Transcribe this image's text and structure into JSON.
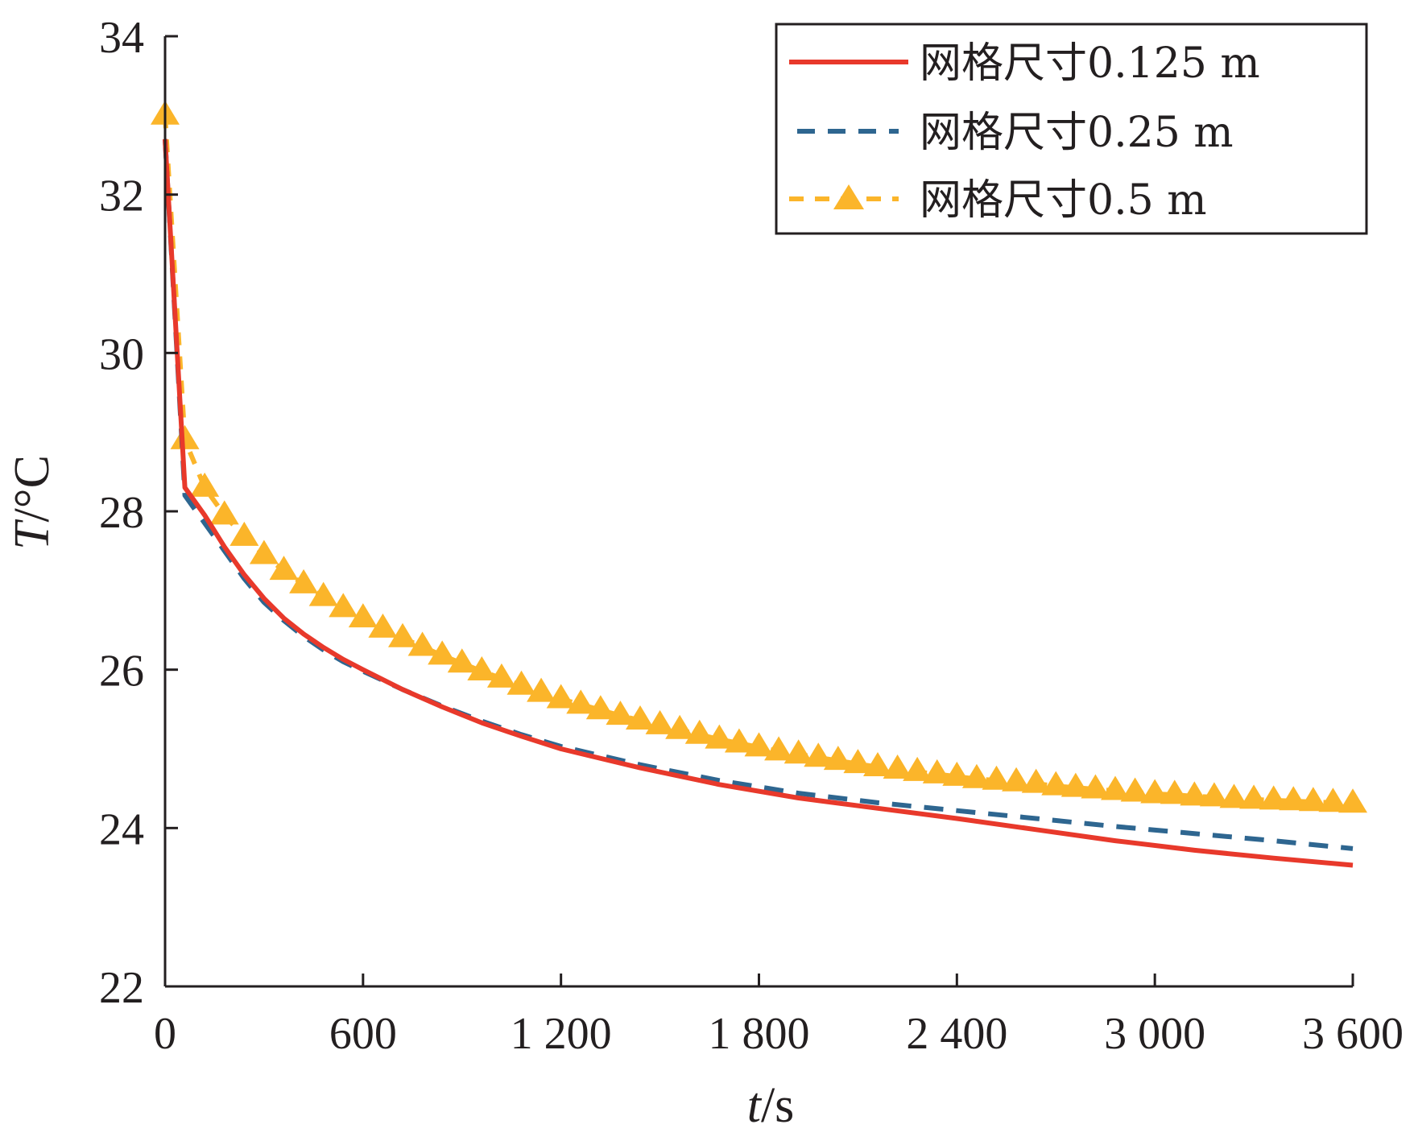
{
  "chart_data": {
    "type": "line",
    "title": "",
    "xlabel": {
      "var": "t",
      "unit": "/s"
    },
    "ylabel": {
      "var": "T",
      "unit": "/°C"
    },
    "xlim": [
      0,
      3600
    ],
    "ylim": [
      22,
      34
    ],
    "x_ticks": [
      0,
      600,
      1200,
      1800,
      2400,
      3000,
      3600
    ],
    "x_tick_labels": [
      "0",
      "600",
      "1 200",
      "1 800",
      "2 400",
      "3 000",
      "3 600"
    ],
    "y_ticks": [
      22,
      24,
      26,
      28,
      30,
      32,
      34
    ],
    "y_tick_labels": [
      "22",
      "24",
      "26",
      "28",
      "30",
      "32",
      "34"
    ],
    "grid": false,
    "legend_position": "top-right",
    "series": [
      {
        "name": "网格尺寸0.125 m",
        "color": "#e8392b",
        "style": "solid",
        "x": [
          0,
          60,
          120,
          180,
          240,
          300,
          360,
          420,
          480,
          540,
          600,
          720,
          840,
          960,
          1080,
          1200,
          1440,
          1680,
          1920,
          2160,
          2400,
          2640,
          2880,
          3120,
          3360,
          3600
        ],
        "y": [
          32.7,
          28.3,
          27.95,
          27.55,
          27.2,
          26.9,
          26.65,
          26.45,
          26.28,
          26.13,
          26.0,
          25.75,
          25.53,
          25.33,
          25.16,
          25.0,
          24.76,
          24.55,
          24.38,
          24.25,
          24.12,
          23.98,
          23.84,
          23.72,
          23.62,
          23.53
        ]
      },
      {
        "name": "网格尺寸0.25 m",
        "color": "#2e6690",
        "style": "dashed",
        "x": [
          0,
          60,
          120,
          180,
          240,
          300,
          360,
          420,
          480,
          540,
          600,
          720,
          840,
          960,
          1080,
          1200,
          1440,
          1680,
          1920,
          2160,
          2400,
          2640,
          2880,
          3120,
          3360,
          3600
        ],
        "y": [
          32.7,
          28.2,
          27.85,
          27.5,
          27.15,
          26.85,
          26.62,
          26.42,
          26.25,
          26.1,
          25.98,
          25.75,
          25.54,
          25.35,
          25.18,
          25.03,
          24.8,
          24.6,
          24.44,
          24.32,
          24.22,
          24.12,
          24.02,
          23.93,
          23.84,
          23.74
        ]
      },
      {
        "name": "网格尺寸0.5 m",
        "color": "#fbb52a",
        "style": "dashed-triangle",
        "x": [
          0,
          60,
          120,
          180,
          240,
          300,
          360,
          420,
          480,
          540,
          600,
          660,
          720,
          780,
          840,
          900,
          960,
          1020,
          1080,
          1140,
          1200,
          1260,
          1320,
          1380,
          1440,
          1500,
          1560,
          1620,
          1680,
          1740,
          1800,
          1860,
          1920,
          1980,
          2040,
          2100,
          2160,
          2220,
          2280,
          2340,
          2400,
          2460,
          2520,
          2580,
          2640,
          2700,
          2760,
          2820,
          2880,
          2940,
          3000,
          3060,
          3120,
          3180,
          3240,
          3300,
          3360,
          3420,
          3480,
          3540,
          3600
        ],
        "y": [
          33.0,
          28.9,
          28.3,
          27.95,
          27.68,
          27.45,
          27.25,
          27.08,
          26.92,
          26.78,
          26.65,
          26.52,
          26.4,
          26.29,
          26.18,
          26.08,
          25.98,
          25.89,
          25.8,
          25.71,
          25.63,
          25.56,
          25.49,
          25.42,
          25.36,
          25.3,
          25.24,
          25.18,
          25.12,
          25.07,
          25.02,
          24.97,
          24.93,
          24.89,
          24.85,
          24.81,
          24.77,
          24.74,
          24.71,
          24.68,
          24.65,
          24.62,
          24.6,
          24.58,
          24.56,
          24.53,
          24.51,
          24.49,
          24.47,
          24.45,
          24.43,
          24.42,
          24.4,
          24.39,
          24.37,
          24.36,
          24.35,
          24.34,
          24.33,
          24.32,
          24.31
        ]
      }
    ]
  }
}
